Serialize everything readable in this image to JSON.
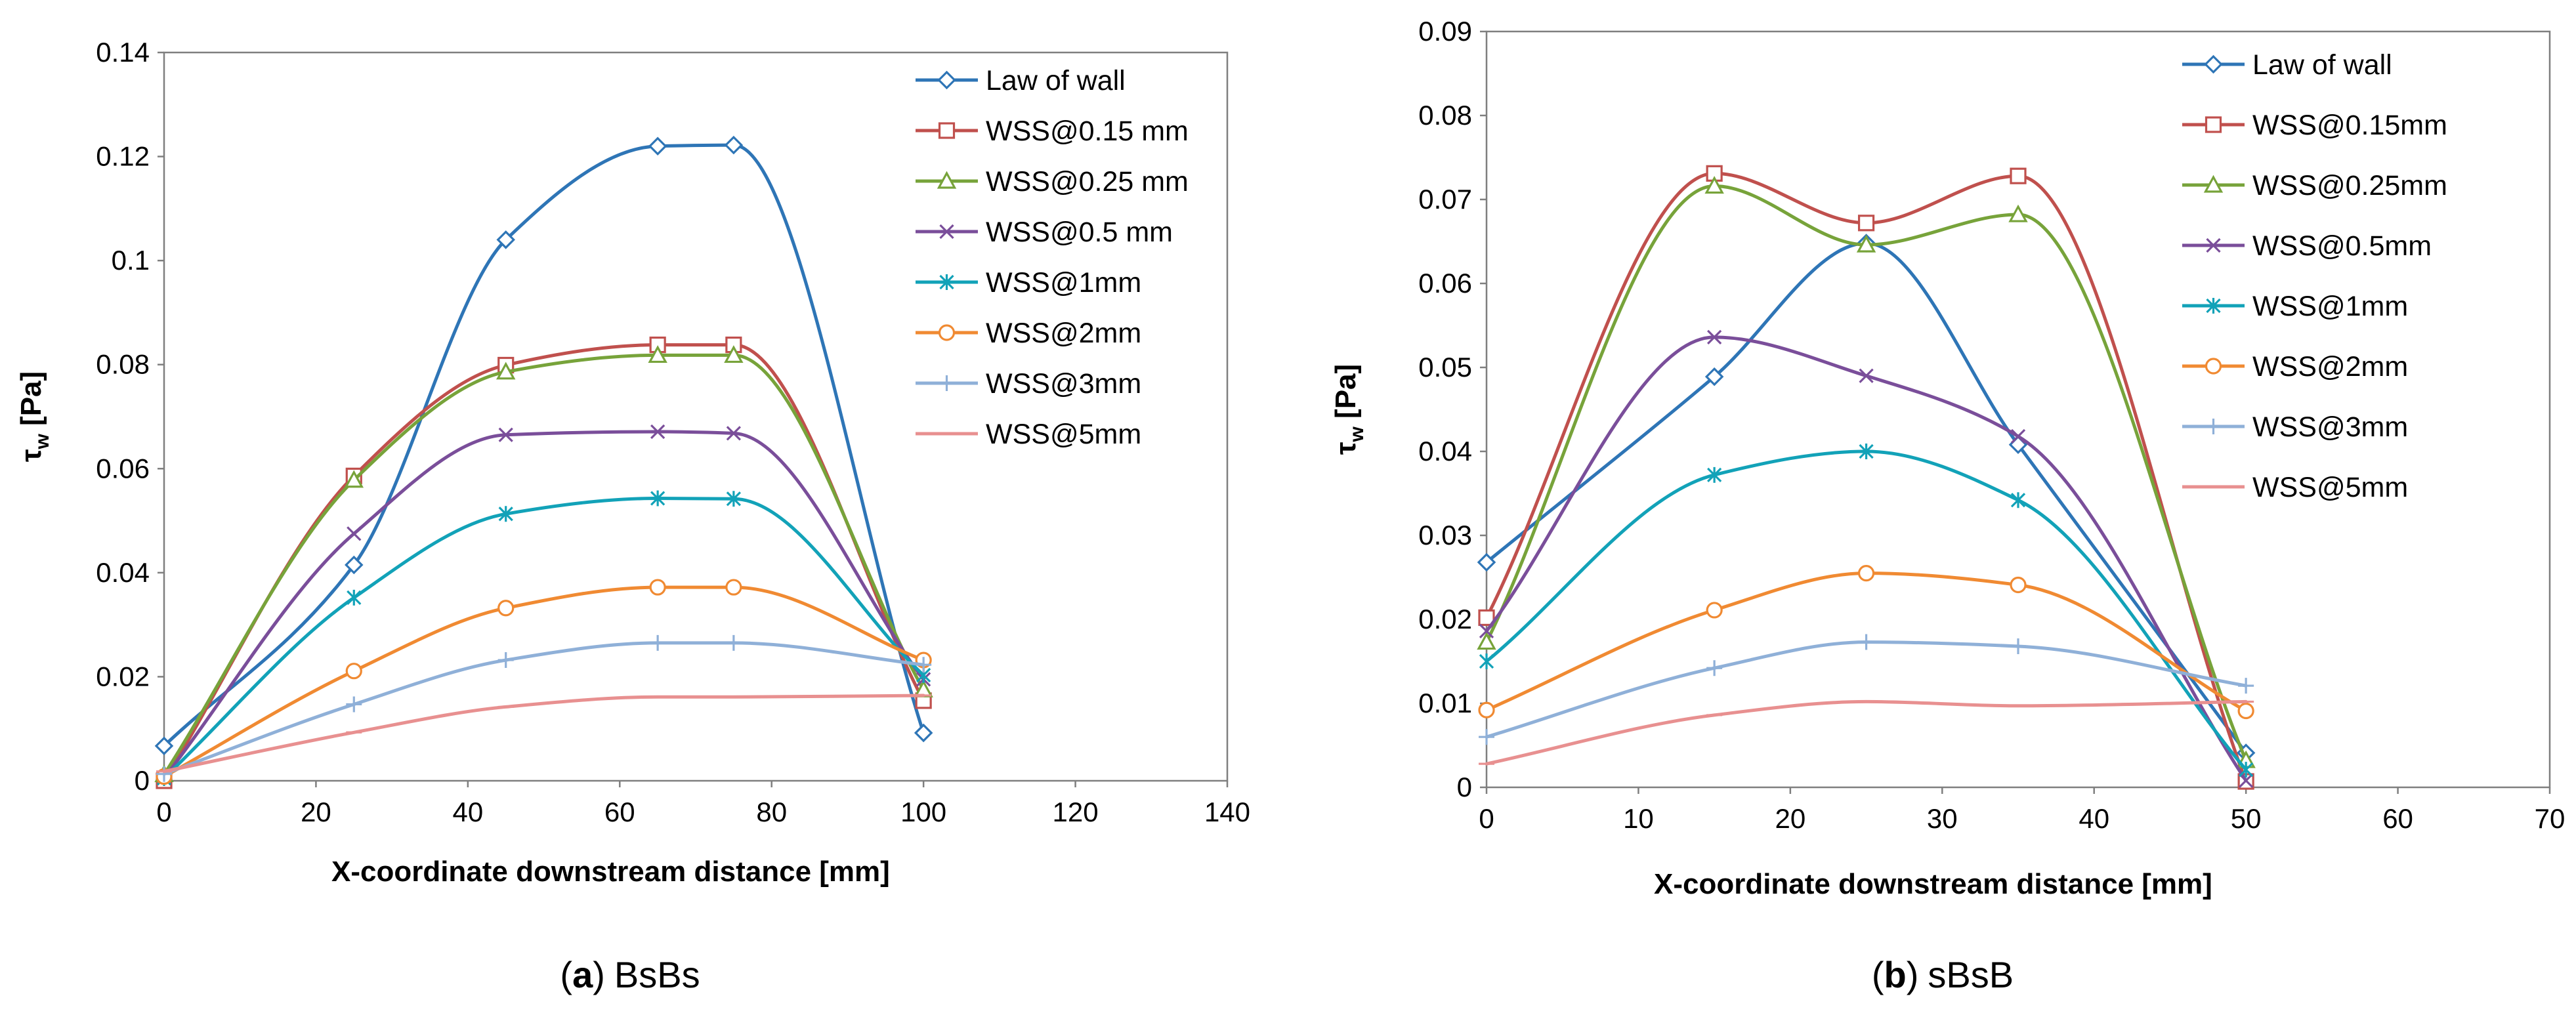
{
  "chart_data": [
    {
      "type": "line",
      "panel": "a",
      "caption_letter": "(a)",
      "caption_text": "BsBs",
      "xlabel": "X-coordinate downstream distance [mm]",
      "ylabel_main": "τ",
      "ylabel_sub": "w",
      "ylabel_unit": " [Pa]",
      "xlim": [
        0,
        140
      ],
      "ylim": [
        0,
        0.14
      ],
      "xticks": [
        0,
        20,
        40,
        60,
        80,
        100,
        120,
        140
      ],
      "yticks": [
        0,
        0.02,
        0.04,
        0.06,
        0.08,
        0.1,
        0.12,
        0.14
      ],
      "xtick_labels": [
        "0",
        "20",
        "40",
        "60",
        "80",
        "100",
        "120",
        "140"
      ],
      "ytick_labels": [
        "0",
        "0.02",
        "0.04",
        "0.06",
        "0.08",
        "0.1",
        "0.12",
        "0.14"
      ],
      "grid": false,
      "legend_position": "top-right",
      "series": [
        {
          "name": "Law of wall",
          "color": "#2e75b6",
          "marker": "diamond",
          "x": [
            0,
            25,
            45,
            65,
            75,
            100
          ],
          "values": [
            0.0067,
            0.0415,
            0.104,
            0.122,
            0.1222,
            0.0092
          ]
        },
        {
          "name": "WSS@0.15 mm",
          "color": "#c0504d",
          "marker": "square",
          "x": [
            0,
            25,
            45,
            65,
            75,
            100
          ],
          "values": [
            0.0,
            0.0586,
            0.0799,
            0.0838,
            0.0838,
            0.0154
          ]
        },
        {
          "name": "WSS@0.25 mm",
          "color": "#77a33a",
          "marker": "triangle",
          "x": [
            0,
            25,
            45,
            65,
            75,
            100
          ],
          "values": [
            0.0012,
            0.0578,
            0.0786,
            0.0818,
            0.0818,
            0.0175
          ]
        },
        {
          "name": "WSS@0.5 mm",
          "color": "#7a4e9a",
          "marker": "x",
          "x": [
            0,
            25,
            45,
            65,
            75,
            100
          ],
          "values": [
            0.0005,
            0.0475,
            0.0665,
            0.0671,
            0.0668,
            0.0195
          ]
        },
        {
          "name": "WSS@1mm",
          "color": "#12a2b8",
          "marker": "asterisk",
          "x": [
            0,
            25,
            45,
            65,
            75,
            100
          ],
          "values": [
            0.0005,
            0.0352,
            0.0513,
            0.0543,
            0.0542,
            0.0203
          ]
        },
        {
          "name": "WSS@2mm",
          "color": "#f08a32",
          "marker": "circle",
          "x": [
            0,
            25,
            45,
            65,
            75,
            100
          ],
          "values": [
            0.0008,
            0.0211,
            0.0332,
            0.0372,
            0.0372,
            0.0232
          ]
        },
        {
          "name": "WSS@3mm",
          "color": "#8fb0d8",
          "marker": "plus",
          "x": [
            0,
            25,
            45,
            65,
            75,
            100
          ],
          "values": [
            0.0013,
            0.0147,
            0.0232,
            0.0265,
            0.0265,
            0.0223
          ]
        },
        {
          "name": "WSS@5mm",
          "color": "#e89090",
          "marker": "dash",
          "x": [
            0,
            25,
            45,
            65,
            75,
            100
          ],
          "values": [
            0.0018,
            0.0093,
            0.0142,
            0.0161,
            0.0161,
            0.0164
          ]
        }
      ]
    },
    {
      "type": "line",
      "panel": "b",
      "caption_letter": "(b)",
      "caption_text": "sBsB",
      "xlabel": "X-coordinate downstream distance [mm]",
      "ylabel_main": "τ",
      "ylabel_sub": "w",
      "ylabel_unit": " [Pa]",
      "xlim": [
        0,
        70
      ],
      "ylim": [
        0,
        0.09
      ],
      "xticks": [
        0,
        10,
        20,
        30,
        40,
        50,
        60,
        70
      ],
      "yticks": [
        0,
        0.01,
        0.02,
        0.03,
        0.04,
        0.05,
        0.06,
        0.07,
        0.08,
        0.09
      ],
      "xtick_labels": [
        "0",
        "10",
        "20",
        "30",
        "40",
        "50",
        "60",
        "70"
      ],
      "ytick_labels": [
        "0",
        "0.01",
        "0.02",
        "0.03",
        "0.04",
        "0.05",
        "0.06",
        "0.07",
        "0.08",
        "0.09"
      ],
      "grid": false,
      "legend_position": "top-right",
      "series": [
        {
          "name": "Law of wall",
          "color": "#2e75b6",
          "marker": "diamond",
          "x": [
            0,
            15,
            25,
            35,
            50
          ],
          "values": [
            0.0268,
            0.0489,
            0.0648,
            0.0408,
            0.0041
          ]
        },
        {
          "name": "WSS@0.15mm",
          "color": "#c0504d",
          "marker": "square",
          "x": [
            0,
            15,
            25,
            35,
            50
          ],
          "values": [
            0.0202,
            0.0731,
            0.0672,
            0.0728,
            0.0007
          ]
        },
        {
          "name": "WSS@0.25mm",
          "color": "#77a33a",
          "marker": "triangle",
          "x": [
            0,
            15,
            25,
            35,
            50
          ],
          "values": [
            0.0173,
            0.0716,
            0.0646,
            0.0682,
            0.0032
          ]
        },
        {
          "name": "WSS@0.5mm",
          "color": "#7a4e9a",
          "marker": "x",
          "x": [
            0,
            15,
            25,
            35,
            50
          ],
          "values": [
            0.0186,
            0.0536,
            0.049,
            0.0418,
            0.0008
          ]
        },
        {
          "name": "WSS@1mm",
          "color": "#12a2b8",
          "marker": "asterisk",
          "x": [
            0,
            15,
            25,
            35,
            50
          ],
          "values": [
            0.015,
            0.0372,
            0.04,
            0.0342,
            0.0021
          ]
        },
        {
          "name": "WSS@2mm",
          "color": "#f08a32",
          "marker": "circle",
          "x": [
            0,
            15,
            25,
            35,
            50
          ],
          "values": [
            0.0092,
            0.0211,
            0.0255,
            0.0241,
            0.0091
          ]
        },
        {
          "name": "WSS@3mm",
          "color": "#8fb0d8",
          "marker": "plus",
          "x": [
            0,
            15,
            25,
            35,
            50
          ],
          "values": [
            0.006,
            0.0142,
            0.0173,
            0.0168,
            0.0121
          ]
        },
        {
          "name": "WSS@5mm",
          "color": "#e89090",
          "marker": "dash",
          "x": [
            0,
            15,
            25,
            35,
            50
          ],
          "values": [
            0.0028,
            0.0086,
            0.0102,
            0.0097,
            0.0102
          ]
        }
      ]
    }
  ]
}
